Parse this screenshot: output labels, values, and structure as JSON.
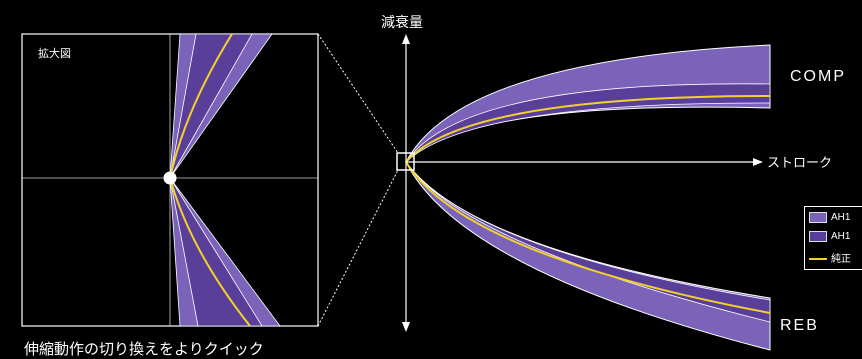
{
  "zoom_panel": {
    "title": "拡大図"
  },
  "axes": {
    "vertical": "減衰量",
    "horizontal": "ストローク"
  },
  "curves": {
    "upper": "COMP",
    "lower": "REB"
  },
  "legend": {
    "items": [
      {
        "label": "AH1",
        "kind": "band",
        "color": "#7a63b8"
      },
      {
        "label": "AH1",
        "kind": "band",
        "color": "#5a3f9a"
      },
      {
        "label": "純正",
        "kind": "line",
        "color": "#f2d22a"
      }
    ]
  },
  "caption": "伸縮動作の切り換えをよりクイック",
  "colors": {
    "band_outer": "#7a63b8",
    "band_inner": "#5a3f9a",
    "stock_line": "#f2d22a"
  }
}
